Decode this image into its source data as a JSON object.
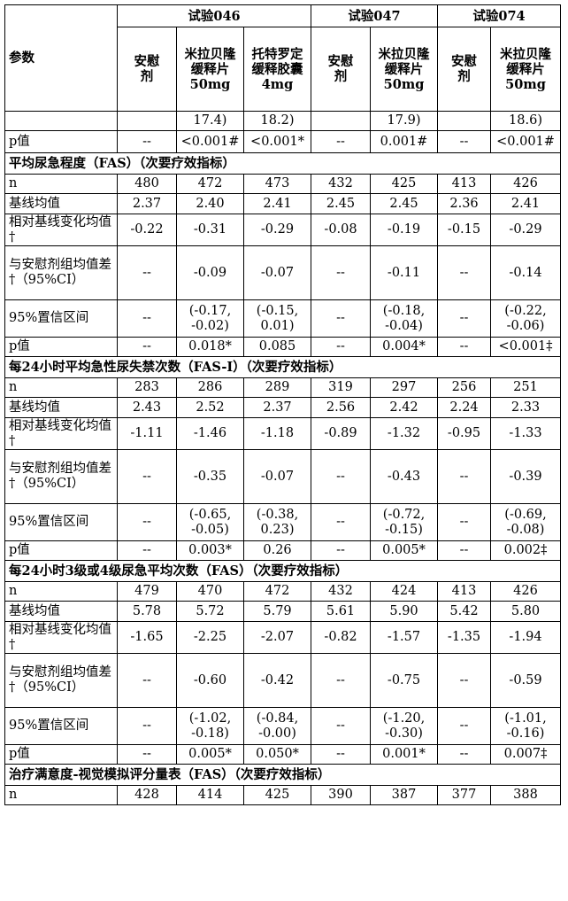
{
  "header": {
    "param": "参数",
    "trials": [
      "试验046",
      "试验047",
      "试验074"
    ],
    "arms": [
      "安慰剂",
      "米拉贝隆缓释片50mg",
      "托特罗定缓释胶囊4mg",
      "安慰剂",
      "米拉贝隆缓释片50mg",
      "安慰剂",
      "米拉贝隆缓释片50mg"
    ]
  },
  "cont_row": [
    "",
    "",
    "17.4)",
    "18.2)",
    "",
    "17.9)",
    "",
    "18.6)"
  ],
  "p_top": [
    "p值",
    "--",
    "<0.001#",
    "<0.001*",
    "--",
    "0.001#",
    "--",
    "<0.001#"
  ],
  "sections": [
    {
      "title": "平均尿急程度（FAS）（次要疗效指标）",
      "rows": [
        [
          "n",
          "480",
          "472",
          "473",
          "432",
          "425",
          "413",
          "426"
        ],
        [
          "基线均值",
          "2.37",
          "2.40",
          "2.41",
          "2.45",
          "2.45",
          "2.36",
          "2.41"
        ],
        [
          "相对基线变化均值†",
          "-0.22",
          "-0.31",
          "-0.29",
          "-0.08",
          "-0.19",
          "-0.15",
          "-0.29"
        ],
        [
          "与安慰剂组均值差†（95%CI）",
          "--",
          "-0.09",
          "-0.07",
          "--",
          "-0.11",
          "--",
          "-0.14"
        ],
        [
          "95%置信区间",
          "--",
          "(-0.17, -0.02)",
          "(-0.15, 0.01)",
          "--",
          "(-0.18, -0.04)",
          "--",
          "(-0.22, -0.06)"
        ],
        [
          "p值",
          "--",
          "0.018*",
          "0.085",
          "--",
          "0.004*",
          "--",
          "<0.001‡"
        ]
      ]
    },
    {
      "title": "每24小时平均急性尿失禁次数（FAS-I）（次要疗效指标）",
      "rows": [
        [
          "n",
          "283",
          "286",
          "289",
          "319",
          "297",
          "256",
          "251"
        ],
        [
          "基线均值",
          "2.43",
          "2.52",
          "2.37",
          "2.56",
          "2.42",
          "2.24",
          "2.33"
        ],
        [
          "相对基线变化均值†",
          "-1.11",
          "-1.46",
          "-1.18",
          "-0.89",
          "-1.32",
          "-0.95",
          "-1.33"
        ],
        [
          "与安慰剂组均值差†（95%CI）",
          "--",
          "-0.35",
          "-0.07",
          "--",
          "-0.43",
          "--",
          "-0.39"
        ],
        [
          "95%置信区间",
          "--",
          "(-0.65, -0.05)",
          "(-0.38, 0.23)",
          "--",
          "(-0.72, -0.15)",
          "--",
          "(-0.69, -0.08)"
        ],
        [
          "p值",
          "--",
          "0.003*",
          "0.26",
          "--",
          "0.005*",
          "--",
          "0.002‡"
        ]
      ]
    },
    {
      "title": "每24小时3级或4级尿急平均次数（FAS）（次要疗效指标）",
      "rows": [
        [
          "n",
          "479",
          "470",
          "472",
          "432",
          "424",
          "413",
          "426"
        ],
        [
          "基线均值",
          "5.78",
          "5.72",
          "5.79",
          "5.61",
          "5.90",
          "5.42",
          "5.80"
        ],
        [
          "相对基线变化均值†",
          "-1.65",
          "-2.25",
          "-2.07",
          "-0.82",
          "-1.57",
          "-1.35",
          "-1.94"
        ],
        [
          "与安慰剂组均值差†（95%CI）",
          "--",
          "-0.60",
          "-0.42",
          "--",
          "-0.75",
          "--",
          "-0.59"
        ],
        [
          "95%置信区间",
          "--",
          "(-1.02, -0.18)",
          "(-0.84, -0.00)",
          "--",
          "(-1.20, -0.30)",
          "--",
          "(-1.01, -0.16)"
        ],
        [
          "p值",
          "--",
          "0.005*",
          "0.050*",
          "--",
          "0.001*",
          "--",
          "0.007‡"
        ]
      ]
    },
    {
      "title": "治疗满意度-视觉模拟评分量表（FAS）（次要疗效指标）",
      "rows": [
        [
          "n",
          "428",
          "414",
          "425",
          "390",
          "387",
          "377",
          "388"
        ]
      ]
    }
  ]
}
